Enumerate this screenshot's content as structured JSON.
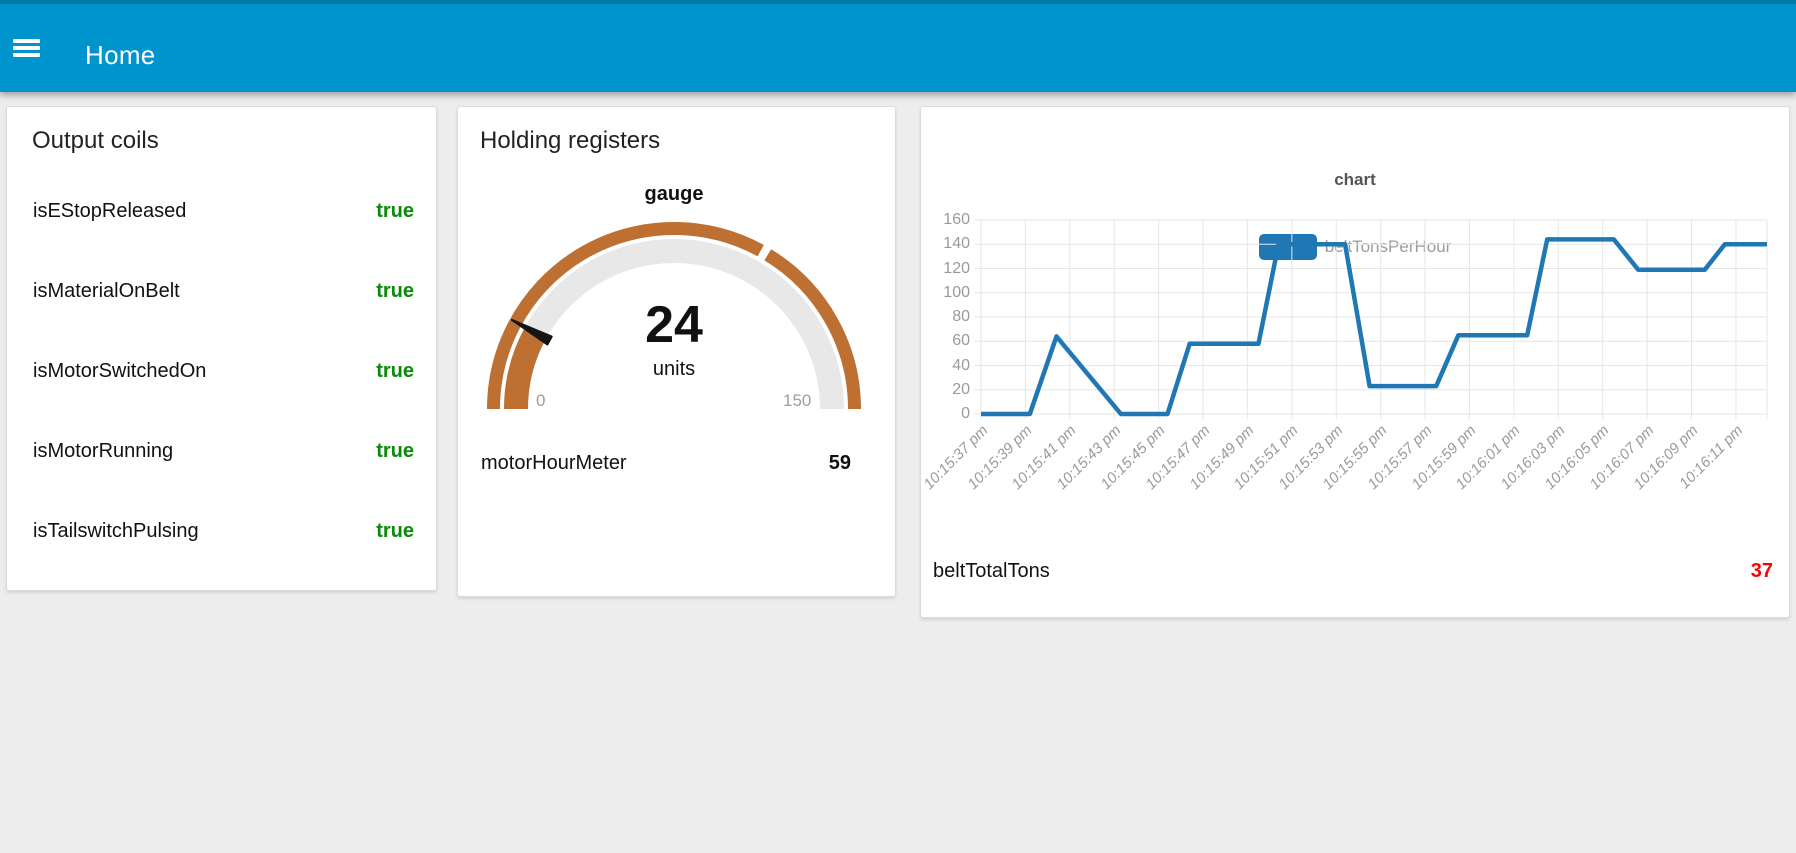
{
  "header": {
    "title": "Home"
  },
  "colors": {
    "header_bg": "#0094CE",
    "page_bg": "#EDEDED",
    "bool_true_green": "#0C8A0C",
    "value_red": "#FF0000",
    "line_blue": "#1F77B4",
    "gauge_arc": "#BD7032",
    "gauge_track": "#E8E8E8"
  },
  "cards": {
    "output_coils": {
      "title": "Output coils",
      "rows": [
        {
          "label": "isEStopReleased",
          "value": "true"
        },
        {
          "label": "isMaterialOnBelt",
          "value": "true"
        },
        {
          "label": "isMotorSwitchedOn",
          "value": "true"
        },
        {
          "label": "isMotorRunning",
          "value": "true"
        },
        {
          "label": "isTailswitchPulsing",
          "value": "true"
        }
      ]
    },
    "holding_registers": {
      "title": "Holding registers",
      "gauge": {
        "label": "gauge",
        "value": "24",
        "units": "units",
        "min_label": "0",
        "max_label": "150",
        "value_num": 24,
        "min": 0,
        "max": 150,
        "sector_break": 100,
        "arc_color": "#BD7032",
        "track_color": "#E8E8E8",
        "needle_color": "#151515"
      },
      "row": {
        "label": "motorHourMeter",
        "value": "59"
      }
    },
    "chart_card": {
      "title": "chart",
      "legend": {
        "label": "beltTonsPerHour",
        "color": "#1F77B4"
      },
      "row": {
        "label": "beltTotalTons",
        "value": "37"
      }
    }
  },
  "chart_data": {
    "type": "line",
    "title": "chart",
    "legend_position": "top",
    "grid": true,
    "x_unit": "time of day",
    "x_range_seconds": [
      0,
      35.4
    ],
    "x_ticks": [
      {
        "s": 0,
        "label": "10:15:37 pm"
      },
      {
        "s": 2,
        "label": "10:15:39 pm"
      },
      {
        "s": 4,
        "label": "10:15:41 pm"
      },
      {
        "s": 6,
        "label": "10:15:43 pm"
      },
      {
        "s": 8,
        "label": "10:15:45 pm"
      },
      {
        "s": 10,
        "label": "10:15:47 pm"
      },
      {
        "s": 12,
        "label": "10:15:49 pm"
      },
      {
        "s": 14,
        "label": "10:15:51 pm"
      },
      {
        "s": 16,
        "label": "10:15:53 pm"
      },
      {
        "s": 18,
        "label": "10:15:55 pm"
      },
      {
        "s": 20,
        "label": "10:15:57 pm"
      },
      {
        "s": 22,
        "label": "10:15:59 pm"
      },
      {
        "s": 24,
        "label": "10:16:01 pm"
      },
      {
        "s": 26,
        "label": "10:16:03 pm"
      },
      {
        "s": 28,
        "label": "10:16:05 pm"
      },
      {
        "s": 30,
        "label": "10:16:07 pm"
      },
      {
        "s": 32,
        "label": "10:16:09 pm"
      },
      {
        "s": 34,
        "label": "10:16:11 pm"
      }
    ],
    "ylim": [
      0,
      160
    ],
    "y_ticks": [
      0,
      20,
      40,
      60,
      80,
      100,
      120,
      140,
      160
    ],
    "series": [
      {
        "name": "beltTonsPerHour",
        "color": "#1F77B4",
        "points": [
          [
            0,
            0
          ],
          [
            2.2,
            0
          ],
          [
            3.4,
            64
          ],
          [
            6.3,
            0
          ],
          [
            8.4,
            0
          ],
          [
            9.4,
            58
          ],
          [
            12.5,
            58
          ],
          [
            13.4,
            140
          ],
          [
            16.4,
            140
          ],
          [
            17.5,
            23
          ],
          [
            20.5,
            23
          ],
          [
            21.5,
            65
          ],
          [
            24.6,
            65
          ],
          [
            25.5,
            144
          ],
          [
            28.5,
            144
          ],
          [
            29.6,
            119
          ],
          [
            32.6,
            119
          ],
          [
            33.5,
            140
          ],
          [
            35.4,
            140
          ]
        ]
      }
    ]
  }
}
